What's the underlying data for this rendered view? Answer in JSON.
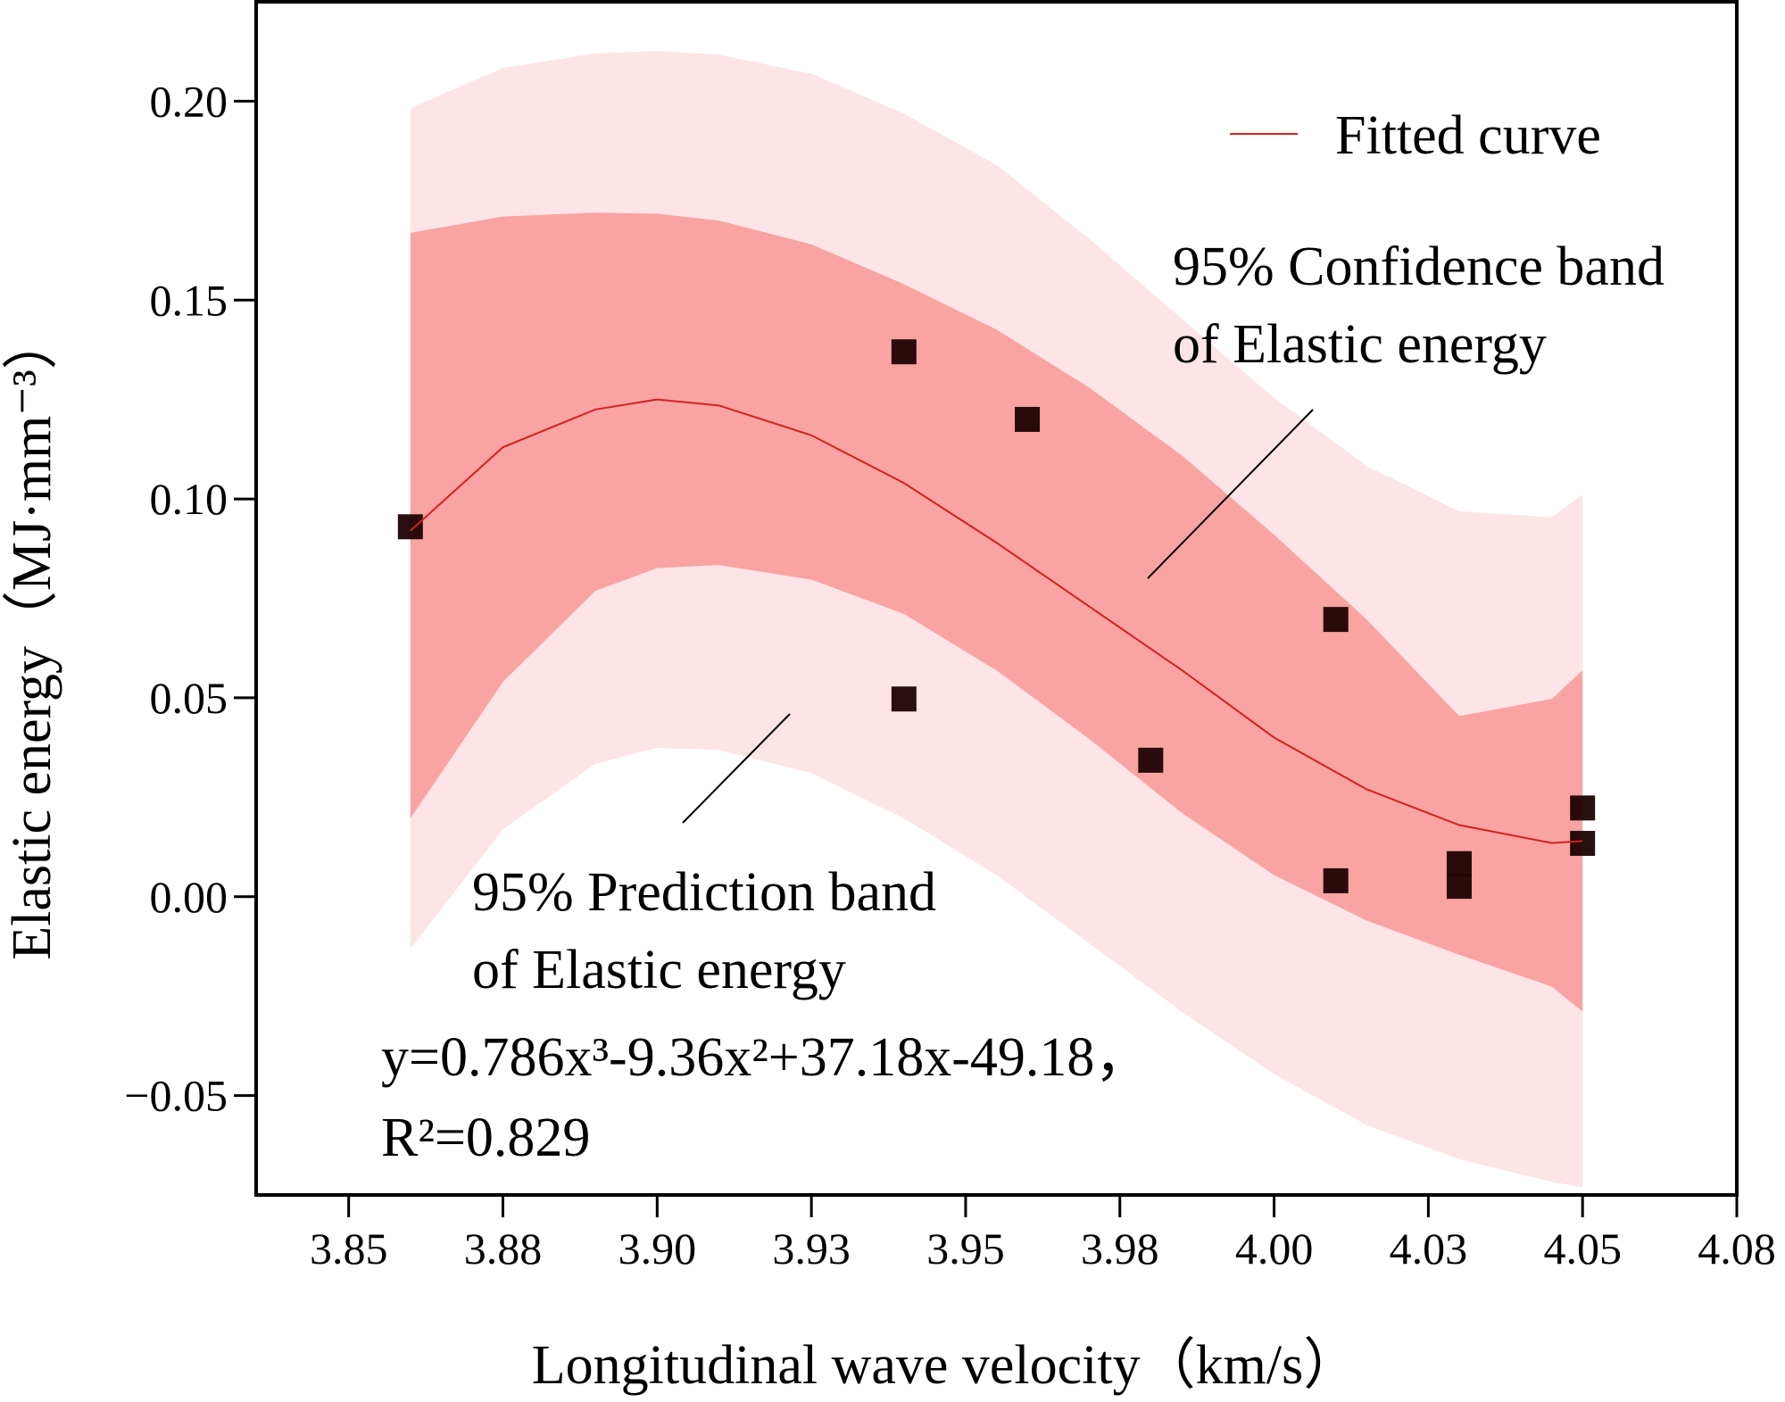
{
  "chart_data": {
    "type": "scatter",
    "x_label": "Longitudinal wave velocity（km/s）",
    "y_label": "Elastic energy（MJ·mm⁻³）",
    "xlim": [
      3.835,
      4.075
    ],
    "ylim": [
      -0.075,
      0.225
    ],
    "xticks": [
      3.85,
      {
        "value": 3.875,
        "label": "3.88"
      },
      {
        "value": 3.9,
        "label": "3.90"
      },
      {
        "value": 3.925,
        "label": "3.93"
      },
      3.95,
      {
        "value": 3.975,
        "label": "3.98"
      },
      {
        "value": 4.0,
        "label": "4.00"
      },
      {
        "value": 4.025,
        "label": "4.03"
      },
      4.05,
      {
        "value": 4.075,
        "label": "4.08"
      }
    ],
    "yticks": [
      {
        "value": -0.05,
        "label": "−0.05"
      },
      {
        "value": 0,
        "label": "0.00"
      },
      0.05,
      {
        "value": 0.1,
        "label": "0.10"
      },
      0.15,
      {
        "value": 0.2,
        "label": "0.20"
      }
    ],
    "series": [
      {
        "color": "#1e0303",
        "x": [
          3.86,
          3.94,
          3.94,
          3.96,
          3.98,
          4.01,
          4.01,
          4.03,
          4.03,
          4.05,
          4.05
        ],
        "values": [
          0.093,
          0.137,
          0.0497,
          0.12,
          0.0343,
          0.0697,
          0.004,
          0.0083,
          0.0026,
          0.0223,
          0.0134
        ]
      }
    ],
    "fit": {
      "name": "Fitted curve",
      "color": "#d42020",
      "x": [
        3.86,
        3.875,
        3.89,
        3.9,
        3.91,
        3.925,
        3.94,
        3.955,
        3.97,
        3.985,
        4.0,
        4.015,
        4.03,
        4.045,
        4.05
      ],
      "values": [
        0.092,
        0.113,
        0.1225,
        0.125,
        0.1235,
        0.116,
        0.104,
        0.089,
        0.073,
        0.057,
        0.04,
        0.027,
        0.018,
        0.0135,
        0.014
      ],
      "equation": "y=0.786x³-9.36x²+37.18x-49.18，",
      "r2": "R²=0.829"
    },
    "confidence_band": {
      "lines": [
        "95% Confidence band",
        "of Elastic energy"
      ],
      "color": "#f9a3a3",
      "upper": [
        0.1669,
        0.171,
        0.172,
        0.1717,
        0.17,
        0.164,
        0.154,
        0.1426,
        0.128,
        0.111,
        0.091,
        0.0697,
        0.0454,
        0.0497,
        0.0569
      ],
      "lower": [
        0.0197,
        0.054,
        0.0769,
        0.0826,
        0.0834,
        0.0797,
        0.0711,
        0.0569,
        0.0397,
        0.0211,
        0.0054,
        -0.006,
        -0.0146,
        -0.0226,
        -0.0289
      ]
    },
    "prediction_band": {
      "lines": [
        "95% Prediction band",
        "of Elastic energy"
      ],
      "color": "#fde4e6",
      "upper": [
        0.1983,
        0.2083,
        0.212,
        0.2126,
        0.2117,
        0.2069,
        0.1969,
        0.184,
        0.1654,
        0.1454,
        0.1254,
        0.1083,
        0.0969,
        0.0954,
        0.1011
      ],
      "lower": [
        -0.0131,
        0.0169,
        0.0334,
        0.0374,
        0.0369,
        0.0311,
        0.0197,
        0.0054,
        -0.0117,
        -0.0289,
        -0.0446,
        -0.0574,
        -0.066,
        -0.0717,
        -0.0731
      ]
    }
  }
}
